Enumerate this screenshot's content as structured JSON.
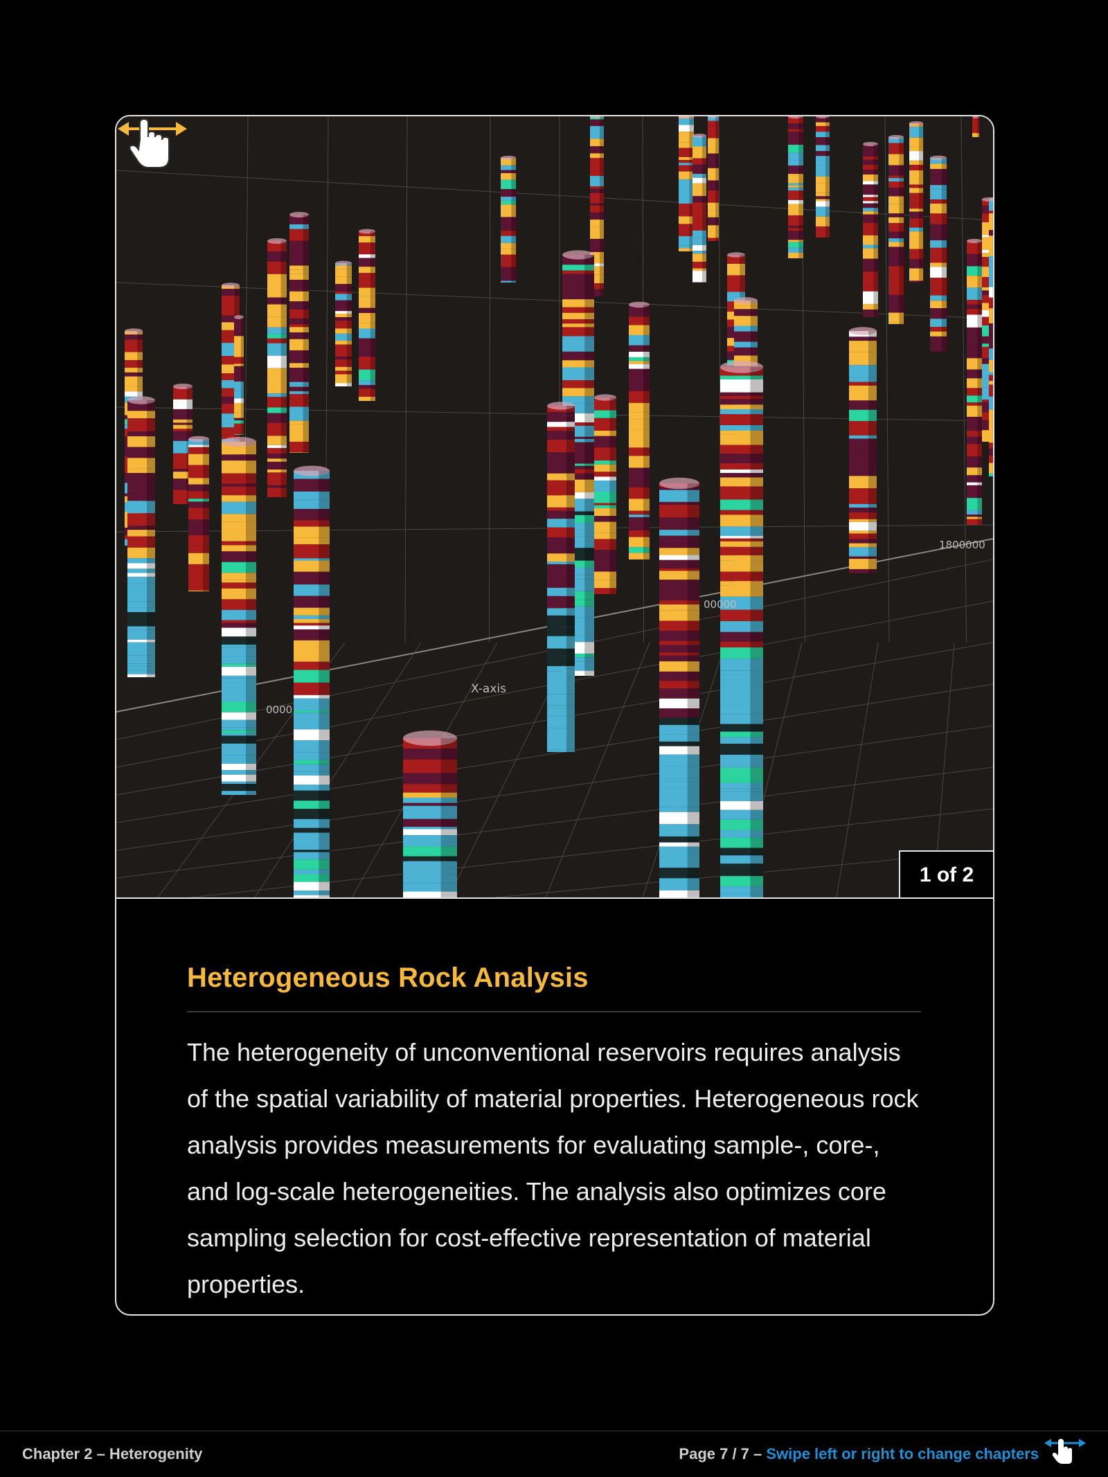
{
  "viz": {
    "image_description_icon": "3d-wellbore-columns-visualization",
    "axis_labels": {
      "x_axis": "X-axis",
      "tick_left": "0000",
      "tick_center": "00000",
      "tick_right": "1800000"
    },
    "colors": {
      "gold": "#f6b93b",
      "maroon": "#5b1432",
      "red": "#a81c1c",
      "cyan": "#4cb3d4",
      "green": "#2bd5a0",
      "white": "#ffffff",
      "grid": "#4a4746"
    },
    "swipe_icon": "swipe-hand-icon"
  },
  "counter": {
    "label": "1 of 2"
  },
  "content": {
    "title": "Heterogeneous Rock Analysis",
    "body": "The heterogeneity of unconventional reservoirs requires analysis of the spatial variability of material properties. Heterogeneous rock analysis provides measurements for evaluating sample-, core-, and log-scale heterogeneities. The analysis also optimizes core sampling selection for cost-effective representation of material properties."
  },
  "footer": {
    "chapter": "Chapter 2 – Heterogenity",
    "page": "Page 7 / 7 – ",
    "swipe_text": "Swipe left or right to change chapters",
    "swipe_icon": "swipe-hand-icon"
  }
}
